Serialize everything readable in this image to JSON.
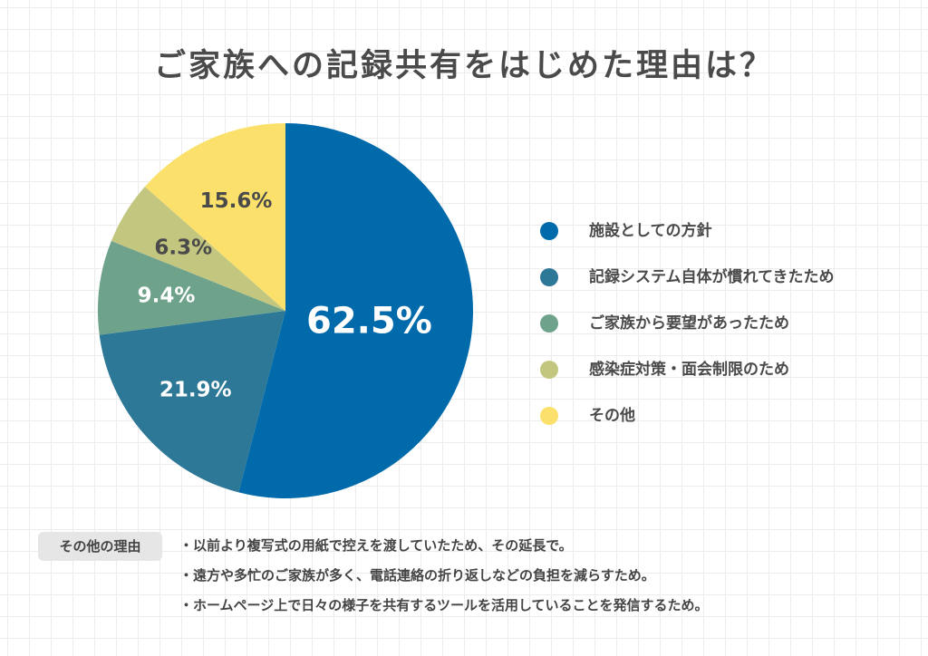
{
  "title": "ご家族への記録共有をはじめた理由は？",
  "chart_data": {
    "type": "pie",
    "title": "ご家族への記録共有をはじめた理由は？",
    "slices": [
      {
        "label": "施設としての方針",
        "value": 62.5,
        "display": "62.5%",
        "color": "#006aab",
        "text_color": "#ffffff"
      },
      {
        "label": "記録システム自体が慣れてきたため",
        "value": 21.9,
        "display": "21.9%",
        "color": "#2c7896",
        "text_color": "#ffffff"
      },
      {
        "label": "ご家族から要望があったため",
        "value": 9.4,
        "display": "9.4%",
        "color": "#6ea28b",
        "text_color": "#ffffff"
      },
      {
        "label": "感染症対策・面会制限のため",
        "value": 6.3,
        "display": "6.3%",
        "color": "#c3c67f",
        "text_color": "#4a4a4a"
      },
      {
        "label": "その他",
        "value": 15.6,
        "display": "15.6%",
        "color": "#fbe16c",
        "text_color": "#4a4a4a"
      }
    ],
    "legend_position": "right"
  },
  "other_reasons": {
    "label": "その他の理由",
    "items": [
      "・以前より複写式の用紙で控えを渡していたため、その延長で。",
      "・遠方や多忙のご家族が多く、電話連絡の折り返しなどの負担を減らすため。",
      "・ホームページ上で日々の様子を共有するツールを活用していることを発信するため。"
    ]
  }
}
